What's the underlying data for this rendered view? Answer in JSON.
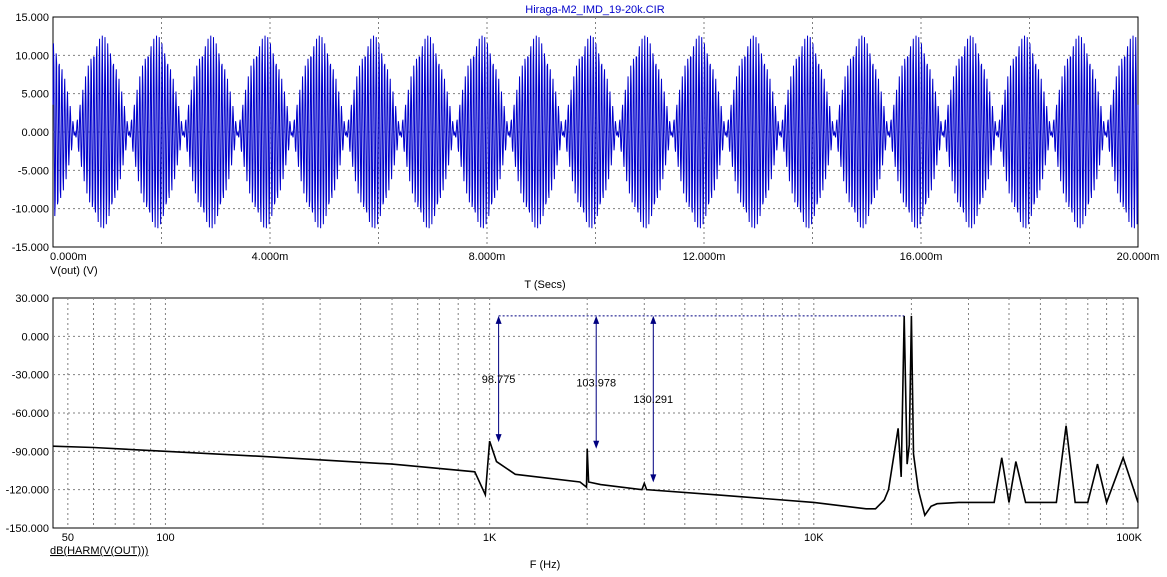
{
  "colors": {
    "time_trace": "#0000cc",
    "spectrum_trace": "#000000",
    "grid": "#808080",
    "annotation": "#000080",
    "title": "#0000cc"
  },
  "chart_data": [
    {
      "type": "line",
      "title": "Hiraga-M2_IMD_19-20k.CIR",
      "xlabel": "T (Secs)",
      "ylabel": "V(out) (V)",
      "xlim": [
        0,
        0.02
      ],
      "ylim": [
        -15,
        15
      ],
      "x_ticks": [
        "0.000m",
        "4.000m",
        "8.000m",
        "12.000m",
        "16.000m",
        "20.000m"
      ],
      "y_ticks": [
        "15.000",
        "10.000",
        "5.000",
        "0.000",
        "-5.000",
        "-10.000",
        "-15.000"
      ],
      "grid": true,
      "series": [
        {
          "name": "V(out) (V)",
          "description_values": {
            "tones_hz": [
              19000,
              20000
            ],
            "envelope_peak_v": 12.6,
            "envelope_min_v": 0.2,
            "beat_frequency_hz": 1000
          }
        }
      ]
    },
    {
      "type": "line",
      "xlabel": "F (Hz)",
      "ylabel": "dB(HARM(V(OUT)))",
      "x_scale": "log",
      "xlim": [
        45,
        100000
      ],
      "ylim": [
        -150,
        30
      ],
      "x_ticks": [
        "50",
        "100",
        "1K",
        "10K",
        "100K"
      ],
      "y_ticks": [
        "30.000",
        "0.000",
        "-30.000",
        "-60.000",
        "-90.000",
        "-120.000",
        "-150.000"
      ],
      "grid": true,
      "series": [
        {
          "name": "dB(HARM(V(OUT)))",
          "x": [
            45,
            60,
            100,
            200,
            500,
            900,
            970,
            1000,
            1050,
            1200,
            1900,
            1990,
            2000,
            2020,
            2200,
            2950,
            3000,
            3050,
            5000,
            10000,
            14500,
            15500,
            16500,
            17000,
            18200,
            18600,
            19000,
            19400,
            19700,
            20000,
            20300,
            21000,
            22000,
            23000,
            24000,
            28000,
            36000,
            38000,
            40000,
            42000,
            45000,
            56000,
            60000,
            64000,
            70000,
            75000,
            80000,
            90000,
            100000
          ],
          "y": [
            -86,
            -87,
            -90,
            -94,
            -100,
            -106,
            -124,
            -82,
            -98,
            -108,
            -114,
            -118,
            -88,
            -114,
            -116,
            -120,
            -115,
            -120,
            -124,
            -130,
            -135,
            -135,
            -128,
            -120,
            -72,
            -110,
            16,
            -100,
            -85,
            16,
            -92,
            -120,
            -140,
            -133,
            -131,
            -130,
            -130,
            -95,
            -130,
            -98,
            -130,
            -130,
            -70,
            -130,
            -130,
            -100,
            -130,
            -95,
            -130
          ]
        }
      ],
      "annotations": [
        {
          "label": "98.775",
          "freq_hz": 1000,
          "from_db": 16,
          "to_db": -82.8
        },
        {
          "label": "103.978",
          "freq_hz": 2000,
          "from_db": 16,
          "to_db": -88
        },
        {
          "label": "130.291",
          "freq_hz": 3000,
          "from_db": 16,
          "to_db": -114.3
        }
      ]
    }
  ]
}
